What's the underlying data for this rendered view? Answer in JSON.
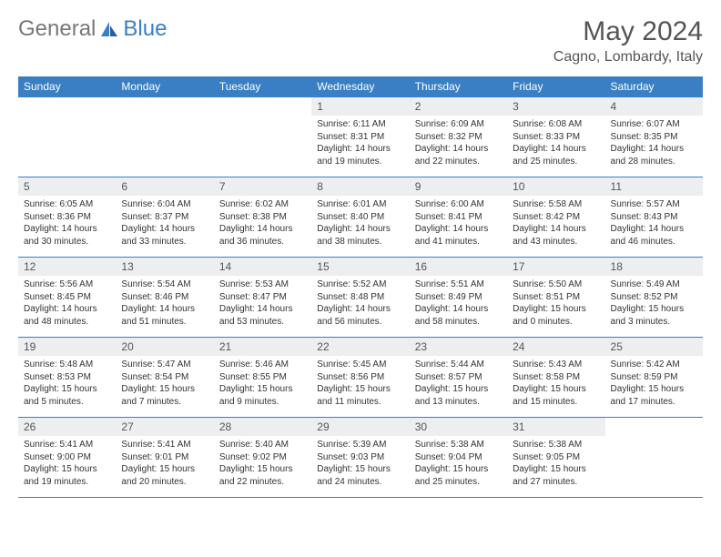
{
  "brand": {
    "part1": "General",
    "part2": "Blue"
  },
  "title": "May 2024",
  "location": "Cagno, Lombardy, Italy",
  "colors": {
    "header_bg": "#3a7fc4",
    "header_text": "#ffffff",
    "daynum_bg": "#eceef0",
    "border": "#3a7fc4",
    "title_color": "#555555",
    "text_color": "#333333",
    "background": "#ffffff"
  },
  "typography": {
    "title_fontsize": 30,
    "location_fontsize": 16,
    "dayheader_fontsize": 12,
    "daynum_fontsize": 12,
    "cell_fontsize": 10
  },
  "day_headers": [
    "Sunday",
    "Monday",
    "Tuesday",
    "Wednesday",
    "Thursday",
    "Friday",
    "Saturday"
  ],
  "weeks": [
    [
      {
        "num": "",
        "lines": []
      },
      {
        "num": "",
        "lines": []
      },
      {
        "num": "",
        "lines": []
      },
      {
        "num": "1",
        "lines": [
          "Sunrise: 6:11 AM",
          "Sunset: 8:31 PM",
          "Daylight: 14 hours",
          "and 19 minutes."
        ]
      },
      {
        "num": "2",
        "lines": [
          "Sunrise: 6:09 AM",
          "Sunset: 8:32 PM",
          "Daylight: 14 hours",
          "and 22 minutes."
        ]
      },
      {
        "num": "3",
        "lines": [
          "Sunrise: 6:08 AM",
          "Sunset: 8:33 PM",
          "Daylight: 14 hours",
          "and 25 minutes."
        ]
      },
      {
        "num": "4",
        "lines": [
          "Sunrise: 6:07 AM",
          "Sunset: 8:35 PM",
          "Daylight: 14 hours",
          "and 28 minutes."
        ]
      }
    ],
    [
      {
        "num": "5",
        "lines": [
          "Sunrise: 6:05 AM",
          "Sunset: 8:36 PM",
          "Daylight: 14 hours",
          "and 30 minutes."
        ]
      },
      {
        "num": "6",
        "lines": [
          "Sunrise: 6:04 AM",
          "Sunset: 8:37 PM",
          "Daylight: 14 hours",
          "and 33 minutes."
        ]
      },
      {
        "num": "7",
        "lines": [
          "Sunrise: 6:02 AM",
          "Sunset: 8:38 PM",
          "Daylight: 14 hours",
          "and 36 minutes."
        ]
      },
      {
        "num": "8",
        "lines": [
          "Sunrise: 6:01 AM",
          "Sunset: 8:40 PM",
          "Daylight: 14 hours",
          "and 38 minutes."
        ]
      },
      {
        "num": "9",
        "lines": [
          "Sunrise: 6:00 AM",
          "Sunset: 8:41 PM",
          "Daylight: 14 hours",
          "and 41 minutes."
        ]
      },
      {
        "num": "10",
        "lines": [
          "Sunrise: 5:58 AM",
          "Sunset: 8:42 PM",
          "Daylight: 14 hours",
          "and 43 minutes."
        ]
      },
      {
        "num": "11",
        "lines": [
          "Sunrise: 5:57 AM",
          "Sunset: 8:43 PM",
          "Daylight: 14 hours",
          "and 46 minutes."
        ]
      }
    ],
    [
      {
        "num": "12",
        "lines": [
          "Sunrise: 5:56 AM",
          "Sunset: 8:45 PM",
          "Daylight: 14 hours",
          "and 48 minutes."
        ]
      },
      {
        "num": "13",
        "lines": [
          "Sunrise: 5:54 AM",
          "Sunset: 8:46 PM",
          "Daylight: 14 hours",
          "and 51 minutes."
        ]
      },
      {
        "num": "14",
        "lines": [
          "Sunrise: 5:53 AM",
          "Sunset: 8:47 PM",
          "Daylight: 14 hours",
          "and 53 minutes."
        ]
      },
      {
        "num": "15",
        "lines": [
          "Sunrise: 5:52 AM",
          "Sunset: 8:48 PM",
          "Daylight: 14 hours",
          "and 56 minutes."
        ]
      },
      {
        "num": "16",
        "lines": [
          "Sunrise: 5:51 AM",
          "Sunset: 8:49 PM",
          "Daylight: 14 hours",
          "and 58 minutes."
        ]
      },
      {
        "num": "17",
        "lines": [
          "Sunrise: 5:50 AM",
          "Sunset: 8:51 PM",
          "Daylight: 15 hours",
          "and 0 minutes."
        ]
      },
      {
        "num": "18",
        "lines": [
          "Sunrise: 5:49 AM",
          "Sunset: 8:52 PM",
          "Daylight: 15 hours",
          "and 3 minutes."
        ]
      }
    ],
    [
      {
        "num": "19",
        "lines": [
          "Sunrise: 5:48 AM",
          "Sunset: 8:53 PM",
          "Daylight: 15 hours",
          "and 5 minutes."
        ]
      },
      {
        "num": "20",
        "lines": [
          "Sunrise: 5:47 AM",
          "Sunset: 8:54 PM",
          "Daylight: 15 hours",
          "and 7 minutes."
        ]
      },
      {
        "num": "21",
        "lines": [
          "Sunrise: 5:46 AM",
          "Sunset: 8:55 PM",
          "Daylight: 15 hours",
          "and 9 minutes."
        ]
      },
      {
        "num": "22",
        "lines": [
          "Sunrise: 5:45 AM",
          "Sunset: 8:56 PM",
          "Daylight: 15 hours",
          "and 11 minutes."
        ]
      },
      {
        "num": "23",
        "lines": [
          "Sunrise: 5:44 AM",
          "Sunset: 8:57 PM",
          "Daylight: 15 hours",
          "and 13 minutes."
        ]
      },
      {
        "num": "24",
        "lines": [
          "Sunrise: 5:43 AM",
          "Sunset: 8:58 PM",
          "Daylight: 15 hours",
          "and 15 minutes."
        ]
      },
      {
        "num": "25",
        "lines": [
          "Sunrise: 5:42 AM",
          "Sunset: 8:59 PM",
          "Daylight: 15 hours",
          "and 17 minutes."
        ]
      }
    ],
    [
      {
        "num": "26",
        "lines": [
          "Sunrise: 5:41 AM",
          "Sunset: 9:00 PM",
          "Daylight: 15 hours",
          "and 19 minutes."
        ]
      },
      {
        "num": "27",
        "lines": [
          "Sunrise: 5:41 AM",
          "Sunset: 9:01 PM",
          "Daylight: 15 hours",
          "and 20 minutes."
        ]
      },
      {
        "num": "28",
        "lines": [
          "Sunrise: 5:40 AM",
          "Sunset: 9:02 PM",
          "Daylight: 15 hours",
          "and 22 minutes."
        ]
      },
      {
        "num": "29",
        "lines": [
          "Sunrise: 5:39 AM",
          "Sunset: 9:03 PM",
          "Daylight: 15 hours",
          "and 24 minutes."
        ]
      },
      {
        "num": "30",
        "lines": [
          "Sunrise: 5:38 AM",
          "Sunset: 9:04 PM",
          "Daylight: 15 hours",
          "and 25 minutes."
        ]
      },
      {
        "num": "31",
        "lines": [
          "Sunrise: 5:38 AM",
          "Sunset: 9:05 PM",
          "Daylight: 15 hours",
          "and 27 minutes."
        ]
      },
      {
        "num": "",
        "lines": []
      }
    ]
  ]
}
